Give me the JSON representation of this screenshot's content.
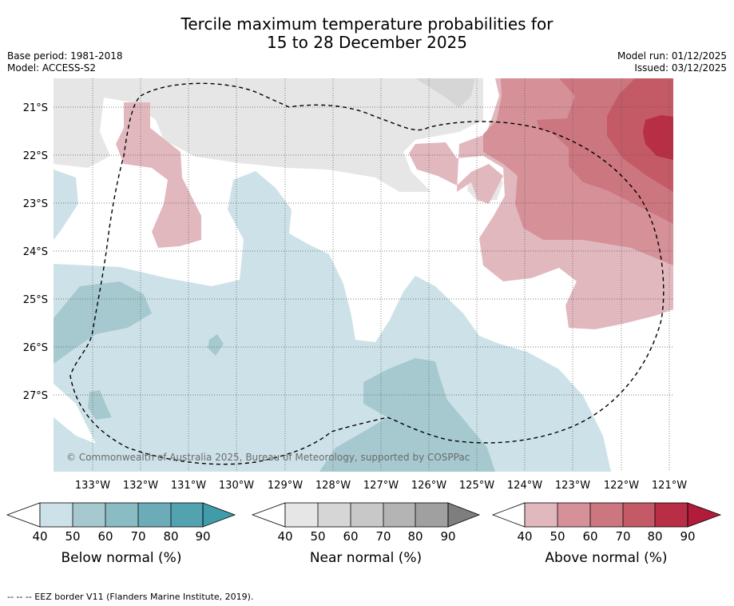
{
  "title": {
    "line1": "Tercile maximum temperature probabilities for",
    "line2": "15 to 28 December 2025"
  },
  "meta": {
    "base_period": "Base period: 1981-2018",
    "model": "Model: ACCESS-S2",
    "model_run": "Model run: 01/12/2025",
    "issued": "Issued: 03/12/2025"
  },
  "map": {
    "copyright": "© Commonwealth of Australia 2025, Bureau of Meteorology, supported by COSPPac",
    "lat_labels": [
      "21°S",
      "22°S",
      "23°S",
      "24°S",
      "25°S",
      "26°S",
      "27°S"
    ],
    "lon_labels": [
      "133°W",
      "132°W",
      "131°W",
      "130°W",
      "129°W",
      "128°W",
      "127°W",
      "126°W",
      "125°W",
      "124°W",
      "123°W",
      "122°W",
      "121°W"
    ],
    "eez_border_style": "dashed"
  },
  "legend": {
    "below": {
      "title": "Below normal (%)",
      "ticks": [
        "40",
        "50",
        "60",
        "70",
        "80",
        "90"
      ],
      "colors": [
        "#cde2e8",
        "#a6c9cf",
        "#8abcc3",
        "#6cacb9",
        "#52a2b0",
        "#3f9ca8"
      ]
    },
    "near": {
      "title": "Near normal (%)",
      "ticks": [
        "40",
        "50",
        "60",
        "70",
        "80",
        "90"
      ],
      "colors": [
        "#e6e6e6",
        "#d6d6d6",
        "#c8c8c8",
        "#b4b4b4",
        "#a0a0a0",
        "#7e7e7e"
      ]
    },
    "above": {
      "title": "Above normal (%)",
      "ticks": [
        "40",
        "50",
        "60",
        "70",
        "80",
        "90"
      ],
      "colors": [
        "#e2b8bf",
        "#d69098",
        "#cc7680",
        "#c45a66",
        "#b82e44",
        "#b11c3a"
      ]
    }
  },
  "footnote": "-- -- -- EEZ border V11 (Flanders Marine Institute, 2019)."
}
